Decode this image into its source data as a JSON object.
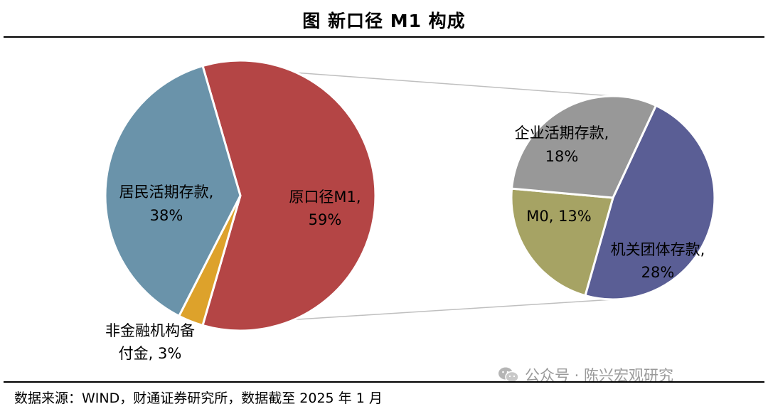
{
  "title": "图  新口径 M1 构成",
  "source": "数据来源：WIND，财通证券研究所，数据截至 2025 年 1 月",
  "watermark": {
    "text": "公众号 · 陈兴宏观研究",
    "icon": "wechat-icon"
  },
  "chart_data": [
    {
      "type": "pie",
      "slices": [
        {
          "label": "原口径M1",
          "value": 59,
          "display": "59%",
          "color": "#B44545"
        },
        {
          "label": "非金融机构备付金",
          "value": 3,
          "display": "3%",
          "color": "#DDA22B"
        },
        {
          "label": "居民活期存款",
          "value": 38,
          "display": "38%",
          "color": "#6A93AA"
        }
      ]
    },
    {
      "type": "pie",
      "slices": [
        {
          "label": "机关团体存款",
          "value": 28,
          "display": "28%",
          "color": "#5A5E95"
        },
        {
          "label": "M0",
          "value": 13,
          "display": "13%",
          "color": "#A6A364"
        },
        {
          "label": "企业活期存款",
          "value": 18,
          "display": "18%",
          "color": "#989898"
        }
      ]
    }
  ],
  "labels": {
    "m1_name": "原口径M1,",
    "m1_pct": "59%",
    "household_name": "居民活期存款,",
    "household_pct": "38%",
    "reserve_line1": "非金融机构备",
    "reserve_line2": "付金, 3%",
    "corp_name": "企业活期存款,",
    "corp_pct": "18%",
    "m0": "M0, 13%",
    "gov_name": "机关团体存款,",
    "gov_pct": "28%"
  }
}
